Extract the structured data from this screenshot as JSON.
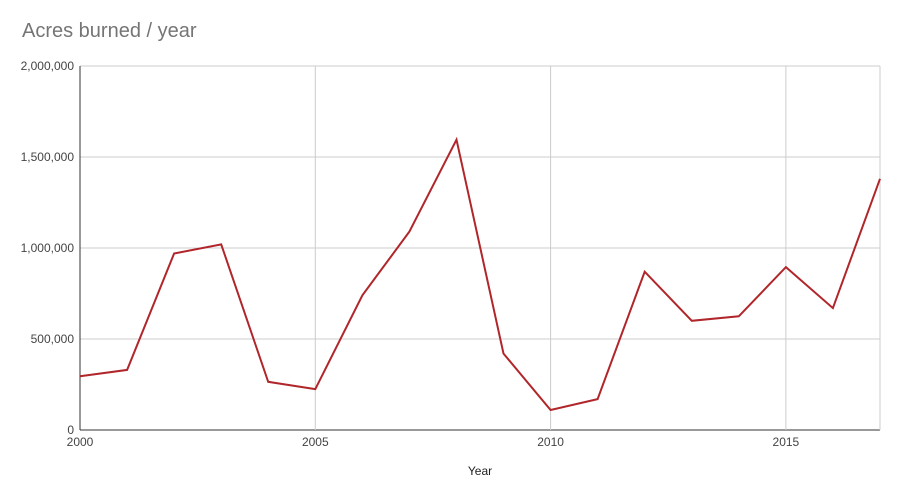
{
  "chart_data": {
    "type": "line",
    "title": "Acres burned / year",
    "xlabel": "Year",
    "ylabel": "",
    "xlim": [
      2000,
      2017
    ],
    "ylim": [
      0,
      2000000
    ],
    "x_ticks": [
      2000,
      2005,
      2010,
      2015
    ],
    "x_tick_labels": [
      "2000",
      "2005",
      "2010",
      "2015"
    ],
    "y_ticks": [
      0,
      500000,
      1000000,
      1500000,
      2000000
    ],
    "y_tick_labels": [
      "0",
      "500,000",
      "1,000,000",
      "1,500,000",
      "2,000,000"
    ],
    "grid": true,
    "legend": "none",
    "line_color": "#b0262a",
    "series": [
      {
        "x": [
          2000,
          2001,
          2002,
          2003,
          2004,
          2005,
          2006,
          2007,
          2008,
          2009,
          2010,
          2011,
          2012,
          2013,
          2014,
          2015,
          2016,
          2017
        ],
        "values": [
          295000,
          330000,
          970000,
          1020000,
          265000,
          225000,
          740000,
          1090000,
          1595000,
          420000,
          110000,
          170000,
          870000,
          600000,
          625000,
          895000,
          670000,
          1380000
        ]
      }
    ]
  }
}
